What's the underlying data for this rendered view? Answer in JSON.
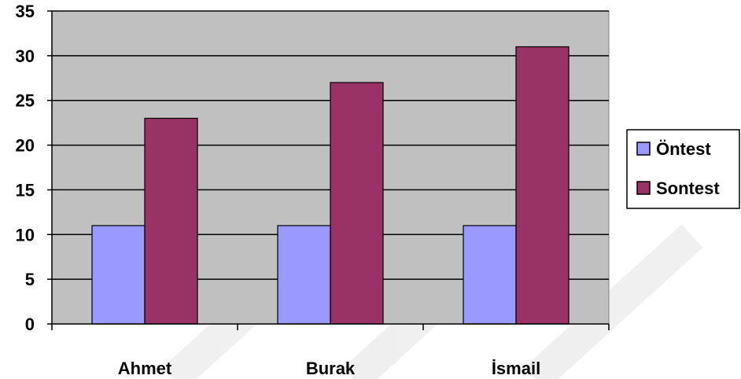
{
  "chart_data": {
    "type": "bar",
    "title": "",
    "xlabel": "",
    "ylabel": "",
    "categories": [
      "Ahmet",
      "Burak",
      "İsmail"
    ],
    "series": [
      {
        "name": "Öntest",
        "values": [
          11,
          11,
          11
        ],
        "color": "#9999FF"
      },
      {
        "name": "Sontest",
        "values": [
          23,
          27,
          31
        ],
        "color": "#993366"
      }
    ],
    "ylim": [
      0,
      35
    ],
    "yticks": [
      "0",
      "5",
      "10",
      "15",
      "20",
      "25",
      "30",
      "35"
    ],
    "grid": true,
    "plot_background": "#C0C0C0",
    "legend_position": "right"
  }
}
